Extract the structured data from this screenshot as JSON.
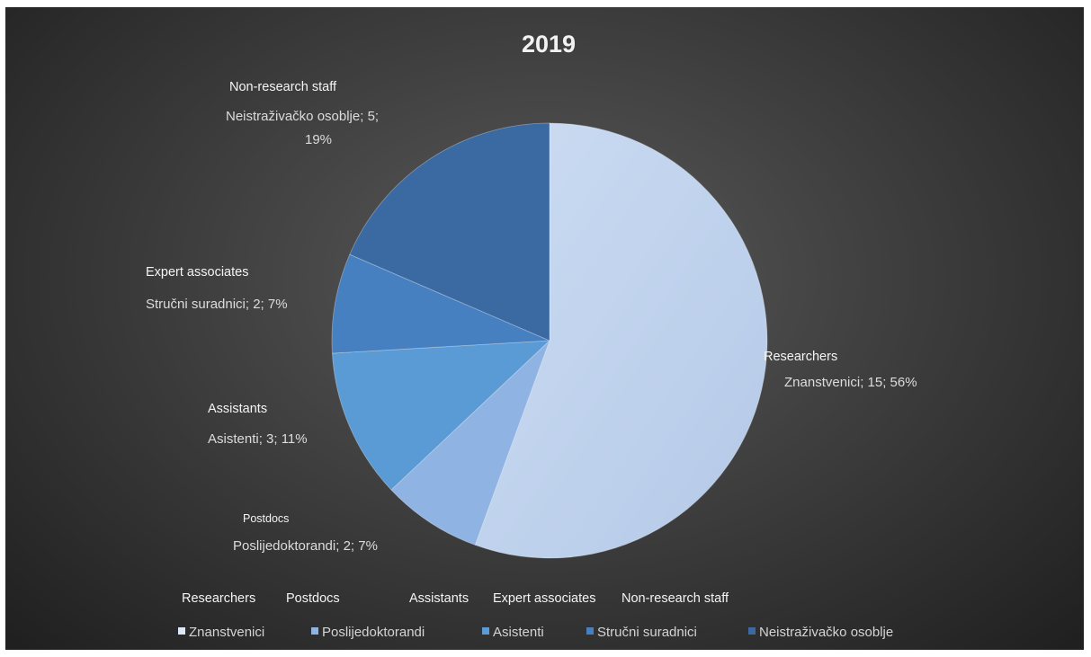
{
  "chart_data": {
    "type": "pie",
    "title": "2019",
    "categories": [
      "Znanstvenici",
      "Poslijedoktorandi",
      "Asistenti",
      "Stručni suradnici",
      "Neistraživačko osoblje"
    ],
    "english_labels": [
      "Researchers",
      "Postdocs",
      "Assistants",
      "Expert associates",
      "Non-research staff"
    ],
    "values": [
      15,
      2,
      3,
      2,
      5
    ],
    "percent_labels": [
      "56%",
      "7%",
      "11%",
      "7%",
      "19%"
    ],
    "data_labels": [
      [
        "Znanstvenici; 15; 56%"
      ],
      [
        "Poslijedoktorandi; 2; 7%"
      ],
      [
        "Asistenti; 3; 11%"
      ],
      [
        "Stručni suradnici; 2; 7%"
      ],
      [
        "Neistraživačko osoblje; 5;",
        "19%"
      ]
    ],
    "colors": [
      "#c3d6ef",
      "#8fb4e3",
      "#5b9bd5",
      "#4780c0",
      "#3b6aa3"
    ],
    "legend_position": "bottom"
  }
}
